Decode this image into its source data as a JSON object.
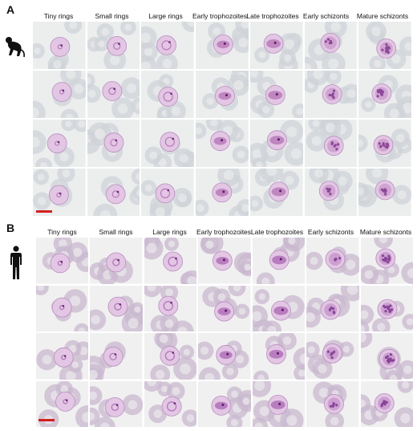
{
  "panels": [
    {
      "letter": "A",
      "icon": "monkey-icon",
      "stages": [
        "Tiny rings",
        "Small rings",
        "Large rings",
        "Early trophozoites",
        "Late trophozoites",
        "Early schizonts",
        "Mature schizonts"
      ],
      "rows": 4,
      "background": "#eceeee",
      "rbc_color": "#cfd3d8",
      "parasite_color": "#b87ab9",
      "scale_bar_color": "#d21f1f"
    },
    {
      "letter": "B",
      "icon": "human-icon",
      "stages": [
        "Tiny rings",
        "Small rings",
        "Large rings",
        "Early trophozoites",
        "Late trophozoites",
        "Early schizonts",
        "Mature schizonts"
      ],
      "rows": 4,
      "background": "#f0f0f0",
      "rbc_color": "#c9b8cf",
      "parasite_color": "#b070b8",
      "scale_bar_color": "#d21f1f"
    }
  ]
}
